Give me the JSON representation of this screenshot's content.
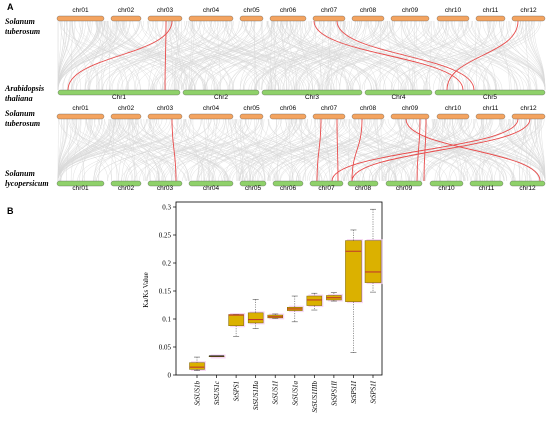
{
  "panels": {
    "a_label": "A",
    "b_label": "B"
  },
  "synteny": {
    "species_top": [
      "Solanum",
      "tuberosum"
    ],
    "species_arabidopsis": [
      "Arabidopsis",
      "thaliana"
    ],
    "species_mid": [
      "Solanum",
      "tuberosum"
    ],
    "species_bottom": [
      "Solanum",
      "lycopersicum"
    ],
    "potato_chromosomes": [
      "chr01",
      "chr02",
      "chr03",
      "chr04",
      "chr05",
      "chr06",
      "chr07",
      "chr08",
      "chr09",
      "chr10",
      "chr11",
      "chr12"
    ],
    "arabidopsis_chromosomes": [
      "Chr1",
      "Chr2",
      "Chr3",
      "Chr4",
      "Chr5"
    ],
    "tomato_chromosomes": [
      "chr01",
      "chr02",
      "chr03",
      "chr04",
      "chr05",
      "chr06",
      "chr07",
      "chr08",
      "chr09",
      "chr10",
      "chr11",
      "chr12"
    ],
    "colors": {
      "potato": "#f4a460",
      "arabidopsis": "#8fd16a",
      "tomato": "#8fd16a",
      "background_links": "#d9d9d9",
      "highlight_links": "#e84b4b"
    }
  },
  "chart_data": {
    "type": "box",
    "ylabel": "Ka/Ks Value",
    "ylim": [
      0,
      0.3
    ],
    "yticks": [
      0,
      0.05,
      0.1,
      0.15,
      0.2,
      0.25,
      0.3
    ],
    "ytick_labels": [
      "0",
      "0.05",
      "0.1",
      "0.15",
      "0.2",
      "0.25",
      "0.3"
    ],
    "categories": [
      "StSUS1b",
      "StSUS1c",
      "StSPS1",
      "StSUS1IIa",
      "StSUS1I",
      "StSUS1a",
      "StSUS1IIIb",
      "StSPS1II",
      "StSPS1I",
      "StSPS1I"
    ],
    "boxes": [
      {
        "min": 0.008,
        "q1": 0.01,
        "median": 0.014,
        "q3": 0.022,
        "max": 0.032
      },
      {
        "min": 0.034,
        "q1": 0.034,
        "median": 0.034,
        "q3": 0.034,
        "max": 0.034
      },
      {
        "min": 0.069,
        "q1": 0.088,
        "median": 0.107,
        "q3": 0.108,
        "max": 0.108
      },
      {
        "min": 0.083,
        "q1": 0.093,
        "median": 0.099,
        "q3": 0.111,
        "max": 0.135
      },
      {
        "min": 0.101,
        "q1": 0.102,
        "median": 0.104,
        "q3": 0.107,
        "max": 0.109
      },
      {
        "min": 0.095,
        "q1": 0.115,
        "median": 0.118,
        "q3": 0.121,
        "max": 0.141
      },
      {
        "min": 0.116,
        "q1": 0.124,
        "median": 0.134,
        "q3": 0.141,
        "max": 0.146
      },
      {
        "min": 0.132,
        "q1": 0.134,
        "median": 0.138,
        "q3": 0.142,
        "max": 0.147
      },
      {
        "min": 0.04,
        "q1": 0.131,
        "median": 0.221,
        "q3": 0.24,
        "max": 0.259
      },
      {
        "min": 0.148,
        "q1": 0.165,
        "median": 0.184,
        "q3": 0.24,
        "max": 0.296
      }
    ],
    "box_color": "#dbb100",
    "median_color": "#c0392b",
    "grid": false
  }
}
